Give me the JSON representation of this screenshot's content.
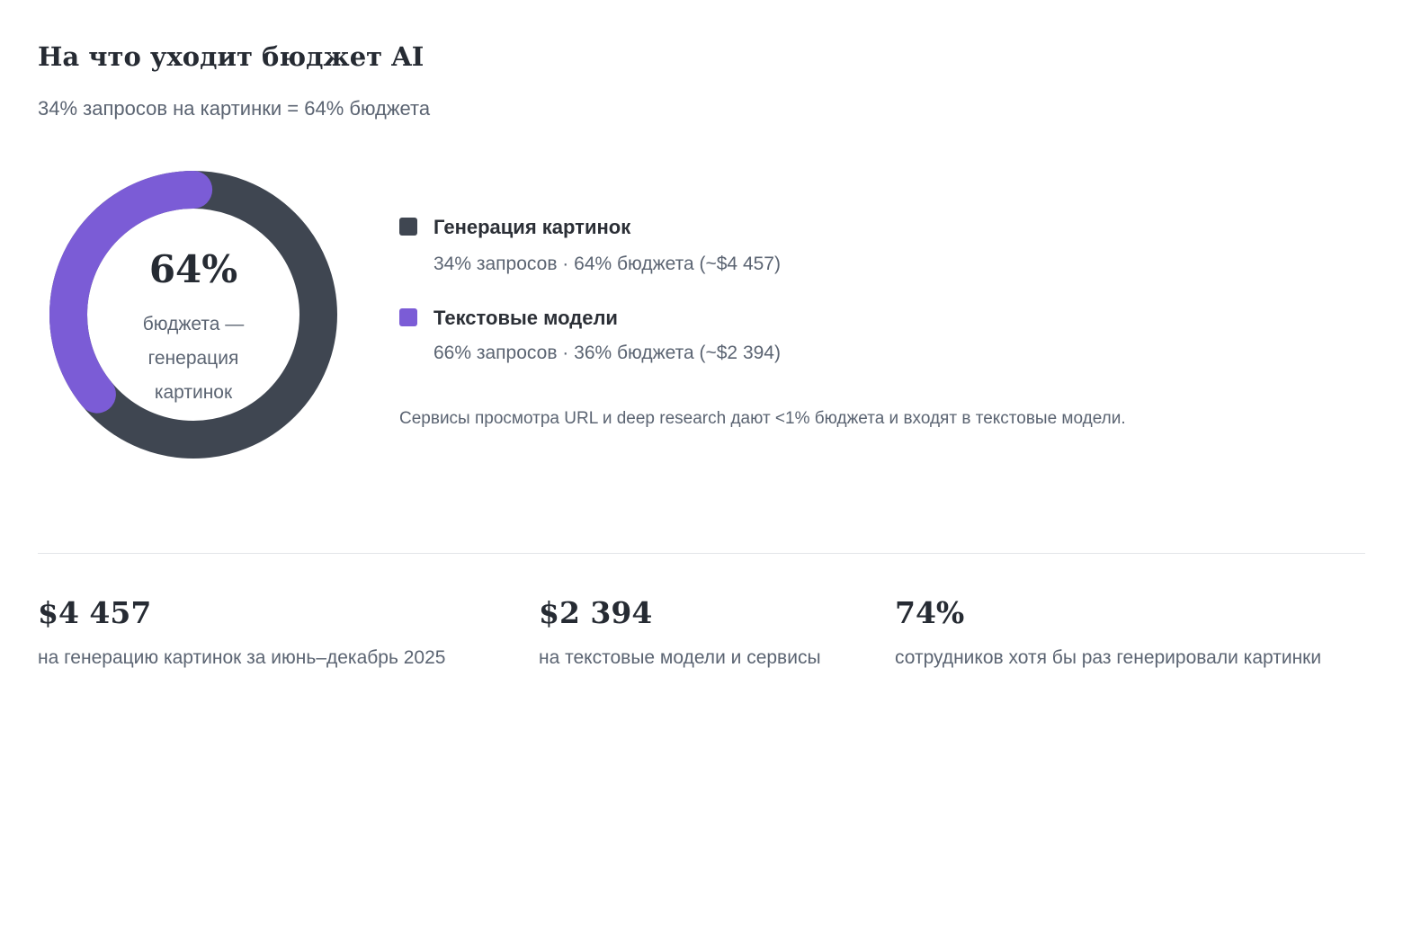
{
  "header": {
    "title": "На что уходит бюджет AI",
    "subtitle": "34% запросов на картинки = 64% бюджета"
  },
  "donut": {
    "center_value": "64%",
    "center_caption": "бюджета — генерация картинок"
  },
  "legend": [
    {
      "name": "Генерация картинок",
      "detail": "34% запросов · 64% бюджета (~$4 457)",
      "color": "#3f4651"
    },
    {
      "name": "Текстовые модели",
      "detail": "66% запросов · 36% бюджета (~$2 394)",
      "color": "#7b5cd6"
    }
  ],
  "note": "Сервисы просмотра URL и deep research дают <1% бюджета и входят в текстовые модели.",
  "stats": [
    {
      "value": "$4 457",
      "label": "на генерацию картинок за июнь–декабрь 2025"
    },
    {
      "value": "$2 394",
      "label": "на текстовые модели и сервисы"
    },
    {
      "value": "74%",
      "label": "сотрудников хотя бы раз генерировали картинки"
    }
  ],
  "chart_data": {
    "type": "pie",
    "categories": [
      "Генерация картинок",
      "Текстовые модели"
    ],
    "values": [
      64,
      36
    ],
    "colors": [
      "#3f4651",
      "#7b5cd6"
    ],
    "title": "На что уходит бюджет AI",
    "subtitle": "34% запросов на картинки = 64% бюджета"
  }
}
